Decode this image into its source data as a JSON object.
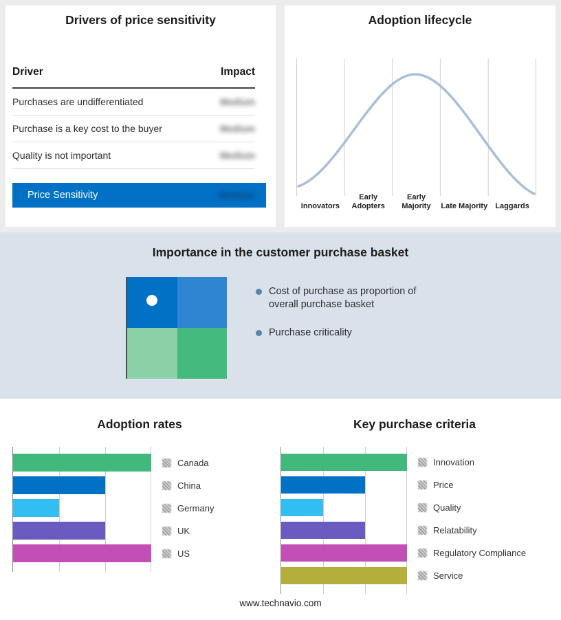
{
  "drivers": {
    "title": "Drivers of price sensitivity",
    "columns": {
      "driver": "Driver",
      "impact": "Impact"
    },
    "rows": [
      {
        "driver": "Purchases are undifferentiated",
        "impact": "Medium",
        "impact_obscured": true
      },
      {
        "driver": "Purchase is a key cost to the buyer",
        "impact": "Medium",
        "impact_obscured": true
      },
      {
        "driver": "Quality is not important",
        "impact": "Medium",
        "impact_obscured": true
      }
    ],
    "highlight_row": {
      "label": "Price Sensitivity",
      "impact": "Medium",
      "impact_obscured": true
    }
  },
  "basket": {
    "title": "Importance in the customer purchase basket",
    "bullets": [
      "Cost of purchase as proportion of overall purchase basket",
      "Purchase criticality"
    ],
    "quadrant_colors": [
      "#0071c5",
      "#2e86d2",
      "#8ad1a8",
      "#45ba7e"
    ]
  },
  "footer": {
    "url": "www.technavio.com"
  },
  "colors": {
    "accent_blue": "#0071c5",
    "band_background": "#d9e2ea",
    "curve": "#a9bed8",
    "bullet_dot": "#5b84a8"
  },
  "chart_data": [
    {
      "id": "adoption-lifecycle",
      "type": "line",
      "title": "Adoption lifecycle",
      "categories": [
        "Innovators",
        "Early Adopters",
        "Early Majority",
        "Late Majority",
        "Laggards"
      ],
      "values": [
        8,
        60,
        100,
        60,
        6
      ],
      "xlabel": "",
      "ylabel": "",
      "grid": "vertical-only",
      "legend": "none",
      "note": "bell-shaped adoption curve peaking at Early Majority"
    },
    {
      "id": "adoption-rates",
      "type": "bar",
      "orientation": "horizontal",
      "title": "Adoption rates",
      "categories": [
        "Canada",
        "China",
        "Germany",
        "UK",
        "US"
      ],
      "values": [
        3,
        2,
        1,
        2,
        3
      ],
      "max": 3,
      "xlim": [
        0,
        3
      ],
      "colors": [
        "#41b97c",
        "#0071c5",
        "#33bef2",
        "#6a5bc0",
        "#c24fb5"
      ],
      "legend_position": "right"
    },
    {
      "id": "key-purchase-criteria",
      "type": "bar",
      "orientation": "horizontal",
      "title": "Key purchase criteria",
      "categories": [
        "Innovation",
        "Price",
        "Quality",
        "Relatability",
        "Regulatory Compliance",
        "Service"
      ],
      "values": [
        3,
        2,
        1,
        2,
        3,
        3
      ],
      "max": 3,
      "xlim": [
        0,
        3
      ],
      "colors": [
        "#41b97c",
        "#0071c5",
        "#33bef2",
        "#6a5bc0",
        "#c24fb5",
        "#b3af3a"
      ],
      "legend_position": "right"
    }
  ]
}
